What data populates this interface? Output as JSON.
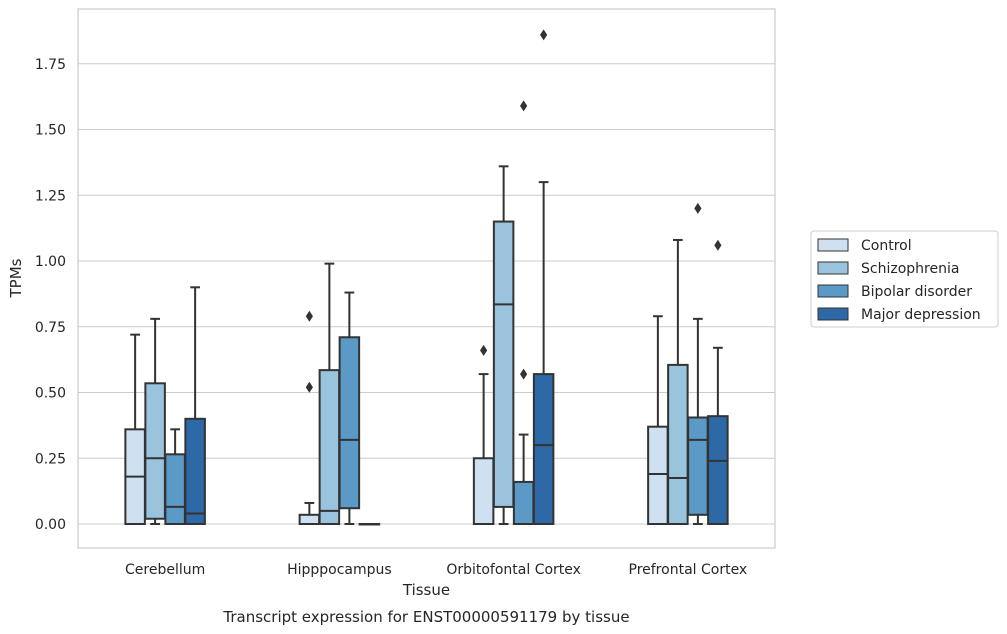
{
  "chart_data": {
    "type": "box",
    "xlabel": "Tissue",
    "ylabel": "TPMs",
    "caption": "Transcript expression for ENST00000591179 by tissue",
    "ylim": [
      -0.09,
      1.95
    ],
    "yticks": [
      "0.00",
      "0.25",
      "0.50",
      "0.75",
      "1.00",
      "1.25",
      "1.50",
      "1.75"
    ],
    "grid": "horizontal",
    "legend_position": "right",
    "categories": [
      "Cerebellum",
      "Hipppocampus",
      "Orbitofontal Cortex",
      "Prefrontal Cortex"
    ],
    "series": [
      {
        "name": "Control",
        "color": "#cfe0f0",
        "boxes": [
          {
            "min": 0,
            "q1": 0,
            "median": 0.18,
            "q3": 0.36,
            "max": 0.72,
            "outliers": []
          },
          {
            "min": 0,
            "q1": 0,
            "median": 0,
            "q3": 0.035,
            "max": 0.08,
            "outliers": [
              0.52,
              0.79
            ]
          },
          {
            "min": 0,
            "q1": 0,
            "median": 0,
            "q3": 0.25,
            "max": 0.57,
            "outliers": [
              0.66
            ]
          },
          {
            "min": 0,
            "q1": 0,
            "median": 0.19,
            "q3": 0.37,
            "max": 0.79,
            "outliers": []
          }
        ]
      },
      {
        "name": "Schizophrenia",
        "color": "#9ac4de",
        "boxes": [
          {
            "min": 0,
            "q1": 0.02,
            "median": 0.25,
            "q3": 0.535,
            "max": 0.78,
            "outliers": []
          },
          {
            "min": 0,
            "q1": 0,
            "median": 0.05,
            "q3": 0.585,
            "max": 0.99,
            "outliers": []
          },
          {
            "min": 0,
            "q1": 0.065,
            "median": 0.835,
            "q3": 1.15,
            "max": 1.36,
            "outliers": []
          },
          {
            "min": 0,
            "q1": 0,
            "median": 0.175,
            "q3": 0.605,
            "max": 1.08,
            "outliers": []
          }
        ]
      },
      {
        "name": "Bipolar disorder",
        "color": "#5b9ac6",
        "boxes": [
          {
            "min": 0,
            "q1": 0,
            "median": 0.065,
            "q3": 0.265,
            "max": 0.36,
            "outliers": []
          },
          {
            "min": 0,
            "q1": 0.06,
            "median": 0.32,
            "q3": 0.71,
            "max": 0.88,
            "outliers": []
          },
          {
            "min": 0,
            "q1": 0,
            "median": 0,
            "q3": 0.16,
            "max": 0.34,
            "outliers": [
              0.57,
              1.59
            ]
          },
          {
            "min": 0,
            "q1": 0.035,
            "median": 0.32,
            "q3": 0.405,
            "max": 0.78,
            "outliers": [
              1.2
            ]
          }
        ]
      },
      {
        "name": "Major depression",
        "color": "#2d69a6",
        "boxes": [
          {
            "min": 0,
            "q1": 0,
            "median": 0.04,
            "q3": 0.4,
            "max": 0.9,
            "outliers": []
          },
          {
            "min": 0,
            "q1": 0,
            "median": 0,
            "q3": 0,
            "max": 0,
            "outliers": []
          },
          {
            "min": 0,
            "q1": 0,
            "median": 0.3,
            "q3": 0.57,
            "max": 1.3,
            "outliers": [
              1.86
            ]
          },
          {
            "min": 0,
            "q1": 0,
            "median": 0.24,
            "q3": 0.41,
            "max": 0.67,
            "outliers": [
              1.06
            ]
          }
        ]
      }
    ]
  }
}
